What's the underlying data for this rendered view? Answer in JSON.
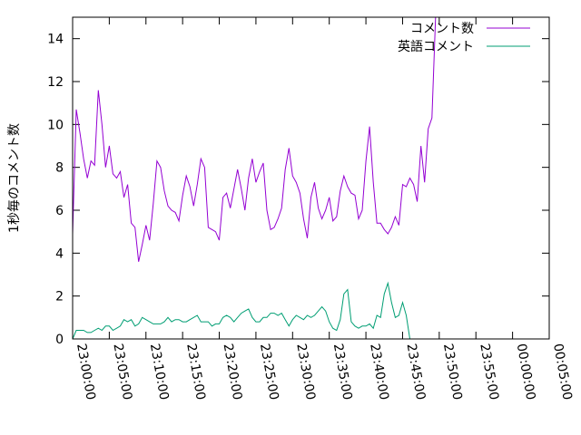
{
  "chart_data": {
    "type": "line",
    "title": "",
    "xlabel": "",
    "ylabel": "1秒毎のコメント数",
    "xlim": [
      "23:00:00",
      "00:05:00"
    ],
    "ylim": [
      0,
      15
    ],
    "grid": false,
    "legend_position": "top-right",
    "x_ticks": [
      "23:00:00",
      "23:05:00",
      "23:10:00",
      "23:15:00",
      "23:20:00",
      "23:25:00",
      "23:30:00",
      "23:35:00",
      "23:40:00",
      "23:45:00",
      "23:50:00",
      "23:55:00",
      "00:00:00",
      "00:05:00"
    ],
    "y_ticks": [
      0,
      2,
      4,
      6,
      8,
      10,
      12,
      14
    ],
    "series": [
      {
        "name": "コメント数",
        "color": "#9400d3",
        "points": [
          [
            "23:00:00",
            4.9
          ],
          [
            "23:00:30",
            10.7
          ],
          [
            "23:01:00",
            9.6
          ],
          [
            "23:01:30",
            8.4
          ],
          [
            "23:02:00",
            7.5
          ],
          [
            "23:02:30",
            8.3
          ],
          [
            "23:03:00",
            8.1
          ],
          [
            "23:03:30",
            11.6
          ],
          [
            "23:04:00",
            10.0
          ],
          [
            "23:04:30",
            8.0
          ],
          [
            "23:05:00",
            9.0
          ],
          [
            "23:05:30",
            7.7
          ],
          [
            "23:06:00",
            7.5
          ],
          [
            "23:06:30",
            7.8
          ],
          [
            "23:07:00",
            6.6
          ],
          [
            "23:07:30",
            7.2
          ],
          [
            "23:08:00",
            5.4
          ],
          [
            "23:08:30",
            5.2
          ],
          [
            "23:09:00",
            3.6
          ],
          [
            "23:09:30",
            4.4
          ],
          [
            "23:10:00",
            5.3
          ],
          [
            "23:10:30",
            4.6
          ],
          [
            "23:11:00",
            6.3
          ],
          [
            "23:11:30",
            8.3
          ],
          [
            "23:12:00",
            8.0
          ],
          [
            "23:12:30",
            6.9
          ],
          [
            "23:13:00",
            6.2
          ],
          [
            "23:13:30",
            6.0
          ],
          [
            "23:14:00",
            5.9
          ],
          [
            "23:14:30",
            5.5
          ],
          [
            "23:15:00",
            6.7
          ],
          [
            "23:15:30",
            7.6
          ],
          [
            "23:16:00",
            7.1
          ],
          [
            "23:16:30",
            6.2
          ],
          [
            "23:17:00",
            7.2
          ],
          [
            "23:17:30",
            8.4
          ],
          [
            "23:18:00",
            8.0
          ],
          [
            "23:18:30",
            5.2
          ],
          [
            "23:19:00",
            5.1
          ],
          [
            "23:19:30",
            5.0
          ],
          [
            "23:20:00",
            4.6
          ],
          [
            "23:20:30",
            6.6
          ],
          [
            "23:21:00",
            6.8
          ],
          [
            "23:21:30",
            6.1
          ],
          [
            "23:22:00",
            7.0
          ],
          [
            "23:22:30",
            7.9
          ],
          [
            "23:23:00",
            7.0
          ],
          [
            "23:23:30",
            6.0
          ],
          [
            "23:24:00",
            7.5
          ],
          [
            "23:24:30",
            8.4
          ],
          [
            "23:25:00",
            7.3
          ],
          [
            "23:25:30",
            7.8
          ],
          [
            "23:26:00",
            8.2
          ],
          [
            "23:26:30",
            6.0
          ],
          [
            "23:27:00",
            5.1
          ],
          [
            "23:27:30",
            5.2
          ],
          [
            "23:28:00",
            5.6
          ],
          [
            "23:28:30",
            6.1
          ],
          [
            "23:29:00",
            7.9
          ],
          [
            "23:29:30",
            8.9
          ],
          [
            "23:30:00",
            7.6
          ],
          [
            "23:30:30",
            7.3
          ],
          [
            "23:31:00",
            6.8
          ],
          [
            "23:31:30",
            5.6
          ],
          [
            "23:32:00",
            4.7
          ],
          [
            "23:32:30",
            6.6
          ],
          [
            "23:33:00",
            7.3
          ],
          [
            "23:33:30",
            6.1
          ],
          [
            "23:34:00",
            5.6
          ],
          [
            "23:34:30",
            6.0
          ],
          [
            "23:35:00",
            6.6
          ],
          [
            "23:35:30",
            5.5
          ],
          [
            "23:36:00",
            5.7
          ],
          [
            "23:36:30",
            6.9
          ],
          [
            "23:37:00",
            7.6
          ],
          [
            "23:37:30",
            7.1
          ],
          [
            "23:38:00",
            6.8
          ],
          [
            "23:38:30",
            6.7
          ],
          [
            "23:39:00",
            5.6
          ],
          [
            "23:39:30",
            6.0
          ],
          [
            "23:40:00",
            8.3
          ],
          [
            "23:40:30",
            9.9
          ],
          [
            "23:41:00",
            7.3
          ],
          [
            "23:41:30",
            5.4
          ],
          [
            "23:42:00",
            5.4
          ],
          [
            "23:42:30",
            5.1
          ],
          [
            "23:43:00",
            4.9
          ],
          [
            "23:43:30",
            5.2
          ],
          [
            "23:44:00",
            5.7
          ],
          [
            "23:44:30",
            5.3
          ],
          [
            "23:45:00",
            7.2
          ],
          [
            "23:45:30",
            7.1
          ],
          [
            "23:46:00",
            7.5
          ],
          [
            "23:46:30",
            7.2
          ],
          [
            "23:47:00",
            6.4
          ],
          [
            "23:47:30",
            9.0
          ],
          [
            "23:48:00",
            7.3
          ],
          [
            "23:48:30",
            9.8
          ],
          [
            "23:49:00",
            10.3
          ],
          [
            "23:49:30",
            15.0
          ]
        ]
      },
      {
        "name": "英語コメント",
        "color": "#009e73",
        "points": [
          [
            "23:00:00",
            0.0
          ],
          [
            "23:00:30",
            0.4
          ],
          [
            "23:01:00",
            0.4
          ],
          [
            "23:01:30",
            0.4
          ],
          [
            "23:02:00",
            0.3
          ],
          [
            "23:02:30",
            0.3
          ],
          [
            "23:03:00",
            0.4
          ],
          [
            "23:03:30",
            0.5
          ],
          [
            "23:04:00",
            0.4
          ],
          [
            "23:04:30",
            0.6
          ],
          [
            "23:05:00",
            0.6
          ],
          [
            "23:05:30",
            0.4
          ],
          [
            "23:06:00",
            0.5
          ],
          [
            "23:06:30",
            0.6
          ],
          [
            "23:07:00",
            0.9
          ],
          [
            "23:07:30",
            0.8
          ],
          [
            "23:08:00",
            0.9
          ],
          [
            "23:08:30",
            0.6
          ],
          [
            "23:09:00",
            0.7
          ],
          [
            "23:09:30",
            1.0
          ],
          [
            "23:10:00",
            0.9
          ],
          [
            "23:10:30",
            0.8
          ],
          [
            "23:11:00",
            0.7
          ],
          [
            "23:11:30",
            0.7
          ],
          [
            "23:12:00",
            0.7
          ],
          [
            "23:12:30",
            0.8
          ],
          [
            "23:13:00",
            1.0
          ],
          [
            "23:13:30",
            0.8
          ],
          [
            "23:14:00",
            0.9
          ],
          [
            "23:14:30",
            0.9
          ],
          [
            "23:15:00",
            0.8
          ],
          [
            "23:15:30",
            0.8
          ],
          [
            "23:16:00",
            0.9
          ],
          [
            "23:16:30",
            1.0
          ],
          [
            "23:17:00",
            1.1
          ],
          [
            "23:17:30",
            0.8
          ],
          [
            "23:18:00",
            0.8
          ],
          [
            "23:18:30",
            0.8
          ],
          [
            "23:19:00",
            0.6
          ],
          [
            "23:19:30",
            0.7
          ],
          [
            "23:20:00",
            0.7
          ],
          [
            "23:20:30",
            1.0
          ],
          [
            "23:21:00",
            1.1
          ],
          [
            "23:21:30",
            1.0
          ],
          [
            "23:22:00",
            0.8
          ],
          [
            "23:22:30",
            1.0
          ],
          [
            "23:23:00",
            1.2
          ],
          [
            "23:23:30",
            1.3
          ],
          [
            "23:24:00",
            1.4
          ],
          [
            "23:24:30",
            1.0
          ],
          [
            "23:25:00",
            0.8
          ],
          [
            "23:25:30",
            0.8
          ],
          [
            "23:26:00",
            1.0
          ],
          [
            "23:26:30",
            1.0
          ],
          [
            "23:27:00",
            1.2
          ],
          [
            "23:27:30",
            1.2
          ],
          [
            "23:28:00",
            1.1
          ],
          [
            "23:28:30",
            1.2
          ],
          [
            "23:29:00",
            0.9
          ],
          [
            "23:29:30",
            0.6
          ],
          [
            "23:30:00",
            0.9
          ],
          [
            "23:30:30",
            1.1
          ],
          [
            "23:31:00",
            1.0
          ],
          [
            "23:31:30",
            0.9
          ],
          [
            "23:32:00",
            1.1
          ],
          [
            "23:32:30",
            1.0
          ],
          [
            "23:33:00",
            1.1
          ],
          [
            "23:33:30",
            1.3
          ],
          [
            "23:34:00",
            1.5
          ],
          [
            "23:34:30",
            1.3
          ],
          [
            "23:35:00",
            0.8
          ],
          [
            "23:35:30",
            0.5
          ],
          [
            "23:36:00",
            0.4
          ],
          [
            "23:36:30",
            0.9
          ],
          [
            "23:37:00",
            2.1
          ],
          [
            "23:37:30",
            2.3
          ],
          [
            "23:38:00",
            0.8
          ],
          [
            "23:38:30",
            0.6
          ],
          [
            "23:39:00",
            0.5
          ],
          [
            "23:39:30",
            0.6
          ],
          [
            "23:40:00",
            0.6
          ],
          [
            "23:40:30",
            0.7
          ],
          [
            "23:41:00",
            0.5
          ],
          [
            "23:41:30",
            1.1
          ],
          [
            "23:42:00",
            1.0
          ],
          [
            "23:42:30",
            2.1
          ],
          [
            "23:43:00",
            2.6
          ],
          [
            "23:43:30",
            1.7
          ],
          [
            "23:44:00",
            1.0
          ],
          [
            "23:44:30",
            1.1
          ],
          [
            "23:45:00",
            1.7
          ],
          [
            "23:45:30",
            1.1
          ],
          [
            "23:46:00",
            0.0
          ]
        ]
      }
    ]
  }
}
